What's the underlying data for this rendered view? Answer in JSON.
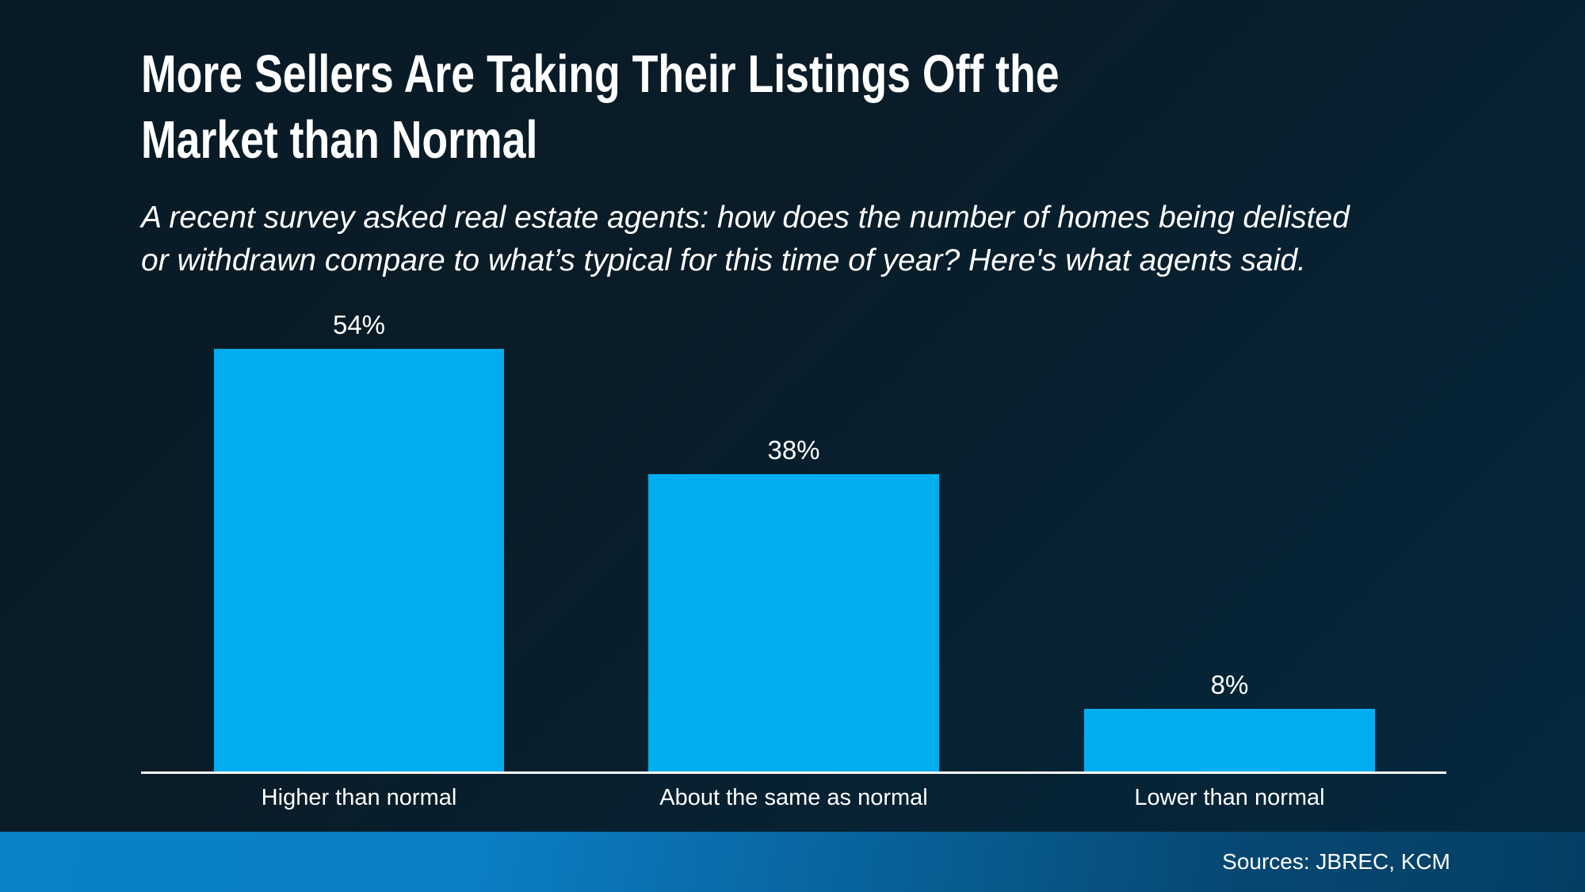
{
  "header": {
    "title_lines": [
      "More Sellers Are Taking Their Listings Off the",
      "Market than Normal"
    ],
    "subtitle_lines": [
      "A recent survey asked real estate agents: how does the number of homes being delisted",
      "or withdrawn compare to what’s typical for this time of year? Here's what agents said."
    ]
  },
  "chart_data": {
    "type": "bar",
    "title": "More Sellers Are Taking Their Listings Off the Market than Normal",
    "subtitle": "A recent survey asked real estate agents: how does the number of homes being delisted or withdrawn compare to what’s typical for this time of year? Here's what agents said.",
    "categories": [
      "Higher than normal",
      "About the same as normal",
      "Lower than normal"
    ],
    "values": [
      54,
      38,
      8
    ],
    "value_labels": [
      "54%",
      "38%",
      "8%"
    ],
    "xlabel": "",
    "ylabel": "",
    "ylim": [
      0,
      65
    ],
    "grid": false,
    "legend": false,
    "bar_color": "#00AEEF",
    "axis_line_color": "#FFFFFF",
    "text_color": "#FFFFFF"
  },
  "footer": {
    "sources": "Sources: JBREC, KCM",
    "gradient_left": "#0a81c9",
    "gradient_right": "#053e63"
  },
  "colors": {
    "background_top_left": "#081a25",
    "background_bottom_right": "#04293f",
    "accent": "#00AEEF"
  }
}
